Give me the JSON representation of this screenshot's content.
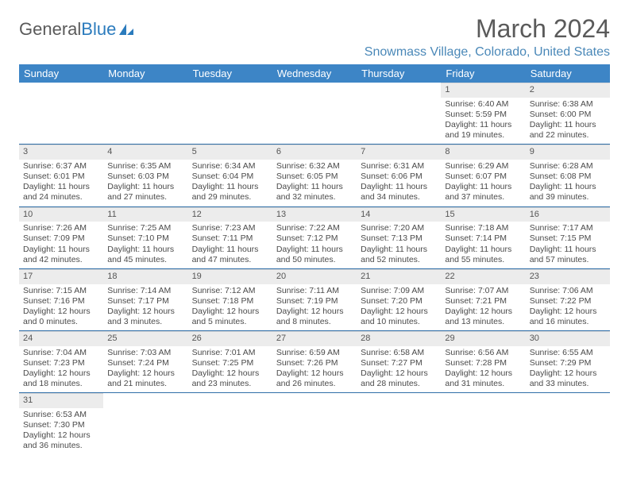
{
  "brand": {
    "part1": "General",
    "part2": "Blue"
  },
  "title": "March 2024",
  "location": "Snowmass Village, Colorado, United States",
  "colors": {
    "header_bg": "#3d85c6",
    "header_fg": "#ffffff",
    "rule": "#2f6ea8",
    "daynum_bg": "#ececec",
    "brand_accent": "#2b7bbd",
    "text": "#4a4a4a",
    "location_fg": "#4a88b8"
  },
  "weekdays": [
    "Sunday",
    "Monday",
    "Tuesday",
    "Wednesday",
    "Thursday",
    "Friday",
    "Saturday"
  ],
  "weeks": [
    [
      null,
      null,
      null,
      null,
      null,
      {
        "n": "1",
        "sunrise": "6:40 AM",
        "sunset": "5:59 PM",
        "daylight": "11 hours and 19 minutes."
      },
      {
        "n": "2",
        "sunrise": "6:38 AM",
        "sunset": "6:00 PM",
        "daylight": "11 hours and 22 minutes."
      }
    ],
    [
      {
        "n": "3",
        "sunrise": "6:37 AM",
        "sunset": "6:01 PM",
        "daylight": "11 hours and 24 minutes."
      },
      {
        "n": "4",
        "sunrise": "6:35 AM",
        "sunset": "6:03 PM",
        "daylight": "11 hours and 27 minutes."
      },
      {
        "n": "5",
        "sunrise": "6:34 AM",
        "sunset": "6:04 PM",
        "daylight": "11 hours and 29 minutes."
      },
      {
        "n": "6",
        "sunrise": "6:32 AM",
        "sunset": "6:05 PM",
        "daylight": "11 hours and 32 minutes."
      },
      {
        "n": "7",
        "sunrise": "6:31 AM",
        "sunset": "6:06 PM",
        "daylight": "11 hours and 34 minutes."
      },
      {
        "n": "8",
        "sunrise": "6:29 AM",
        "sunset": "6:07 PM",
        "daylight": "11 hours and 37 minutes."
      },
      {
        "n": "9",
        "sunrise": "6:28 AM",
        "sunset": "6:08 PM",
        "daylight": "11 hours and 39 minutes."
      }
    ],
    [
      {
        "n": "10",
        "sunrise": "7:26 AM",
        "sunset": "7:09 PM",
        "daylight": "11 hours and 42 minutes."
      },
      {
        "n": "11",
        "sunrise": "7:25 AM",
        "sunset": "7:10 PM",
        "daylight": "11 hours and 45 minutes."
      },
      {
        "n": "12",
        "sunrise": "7:23 AM",
        "sunset": "7:11 PM",
        "daylight": "11 hours and 47 minutes."
      },
      {
        "n": "13",
        "sunrise": "7:22 AM",
        "sunset": "7:12 PM",
        "daylight": "11 hours and 50 minutes."
      },
      {
        "n": "14",
        "sunrise": "7:20 AM",
        "sunset": "7:13 PM",
        "daylight": "11 hours and 52 minutes."
      },
      {
        "n": "15",
        "sunrise": "7:18 AM",
        "sunset": "7:14 PM",
        "daylight": "11 hours and 55 minutes."
      },
      {
        "n": "16",
        "sunrise": "7:17 AM",
        "sunset": "7:15 PM",
        "daylight": "11 hours and 57 minutes."
      }
    ],
    [
      {
        "n": "17",
        "sunrise": "7:15 AM",
        "sunset": "7:16 PM",
        "daylight": "12 hours and 0 minutes."
      },
      {
        "n": "18",
        "sunrise": "7:14 AM",
        "sunset": "7:17 PM",
        "daylight": "12 hours and 3 minutes."
      },
      {
        "n": "19",
        "sunrise": "7:12 AM",
        "sunset": "7:18 PM",
        "daylight": "12 hours and 5 minutes."
      },
      {
        "n": "20",
        "sunrise": "7:11 AM",
        "sunset": "7:19 PM",
        "daylight": "12 hours and 8 minutes."
      },
      {
        "n": "21",
        "sunrise": "7:09 AM",
        "sunset": "7:20 PM",
        "daylight": "12 hours and 10 minutes."
      },
      {
        "n": "22",
        "sunrise": "7:07 AM",
        "sunset": "7:21 PM",
        "daylight": "12 hours and 13 minutes."
      },
      {
        "n": "23",
        "sunrise": "7:06 AM",
        "sunset": "7:22 PM",
        "daylight": "12 hours and 16 minutes."
      }
    ],
    [
      {
        "n": "24",
        "sunrise": "7:04 AM",
        "sunset": "7:23 PM",
        "daylight": "12 hours and 18 minutes."
      },
      {
        "n": "25",
        "sunrise": "7:03 AM",
        "sunset": "7:24 PM",
        "daylight": "12 hours and 21 minutes."
      },
      {
        "n": "26",
        "sunrise": "7:01 AM",
        "sunset": "7:25 PM",
        "daylight": "12 hours and 23 minutes."
      },
      {
        "n": "27",
        "sunrise": "6:59 AM",
        "sunset": "7:26 PM",
        "daylight": "12 hours and 26 minutes."
      },
      {
        "n": "28",
        "sunrise": "6:58 AM",
        "sunset": "7:27 PM",
        "daylight": "12 hours and 28 minutes."
      },
      {
        "n": "29",
        "sunrise": "6:56 AM",
        "sunset": "7:28 PM",
        "daylight": "12 hours and 31 minutes."
      },
      {
        "n": "30",
        "sunrise": "6:55 AM",
        "sunset": "7:29 PM",
        "daylight": "12 hours and 33 minutes."
      }
    ],
    [
      {
        "n": "31",
        "sunrise": "6:53 AM",
        "sunset": "7:30 PM",
        "daylight": "12 hours and 36 minutes."
      },
      null,
      null,
      null,
      null,
      null,
      null
    ]
  ],
  "labels": {
    "sunrise": "Sunrise:",
    "sunset": "Sunset:",
    "daylight": "Daylight:"
  }
}
